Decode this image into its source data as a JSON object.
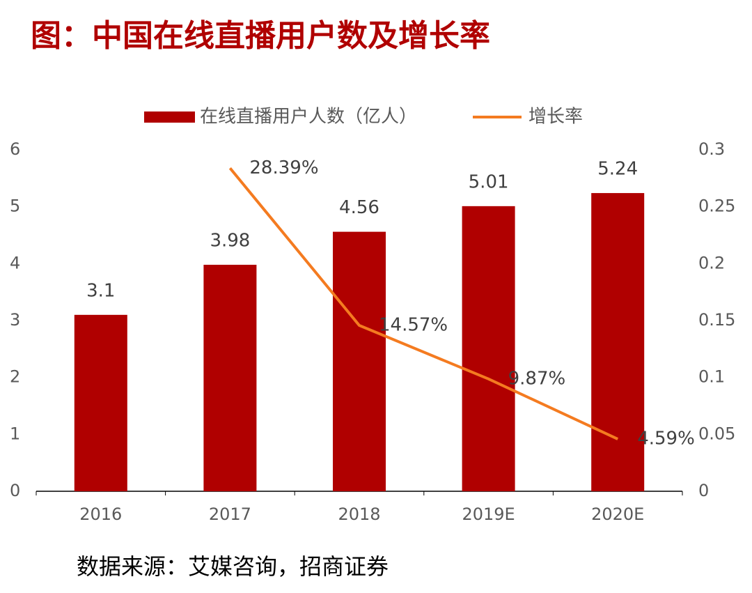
{
  "chart_data": {
    "type": "bar",
    "title": "图：中国在线直播用户数及增长率",
    "source": "数据来源：艾媒咨询，招商证券",
    "categories": [
      "2016",
      "2017",
      "2018",
      "2019E",
      "2020E"
    ],
    "series": [
      {
        "name": "在线直播用户人数（亿人）",
        "type": "bar",
        "color": "#b00000",
        "values": [
          3.1,
          3.98,
          4.56,
          5.01,
          5.24
        ]
      },
      {
        "name": "增长率",
        "type": "line",
        "axis": "y2",
        "color": "#f47b20",
        "values": [
          null,
          0.2839,
          0.1457,
          0.0987,
          0.0459
        ],
        "value_labels": [
          null,
          "28.39%",
          "14.57%",
          "9.87%",
          "4.59%"
        ]
      }
    ],
    "ylim": [
      0,
      6
    ],
    "yticks": [
      0,
      1,
      2,
      3,
      4,
      5,
      6
    ],
    "y2lim": [
      0,
      0.3
    ],
    "y2ticks": [
      0,
      0.05,
      0.1,
      0.15,
      0.2,
      0.25,
      0.3
    ],
    "grid": false,
    "legend": "top"
  }
}
